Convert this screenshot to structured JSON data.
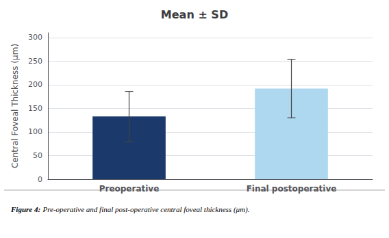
{
  "chart_data": {
    "type": "bar",
    "title": "Mean ± SD",
    "ylabel": "Central Foveal Thickness (μm)",
    "categories": [
      "Preoperative",
      "Final postoperative"
    ],
    "values": [
      133,
      192
    ],
    "errors": [
      53,
      62
    ],
    "colors": [
      "#1b3a6b",
      "#add8f0"
    ],
    "ylim": [
      0,
      310
    ],
    "yticks": [
      0,
      50,
      100,
      150,
      200,
      250,
      300
    ],
    "grid": true,
    "annotations": [
      "Figure 4:",
      "Pre-operative and final post-operative central foveal thickness (μm)."
    ]
  }
}
